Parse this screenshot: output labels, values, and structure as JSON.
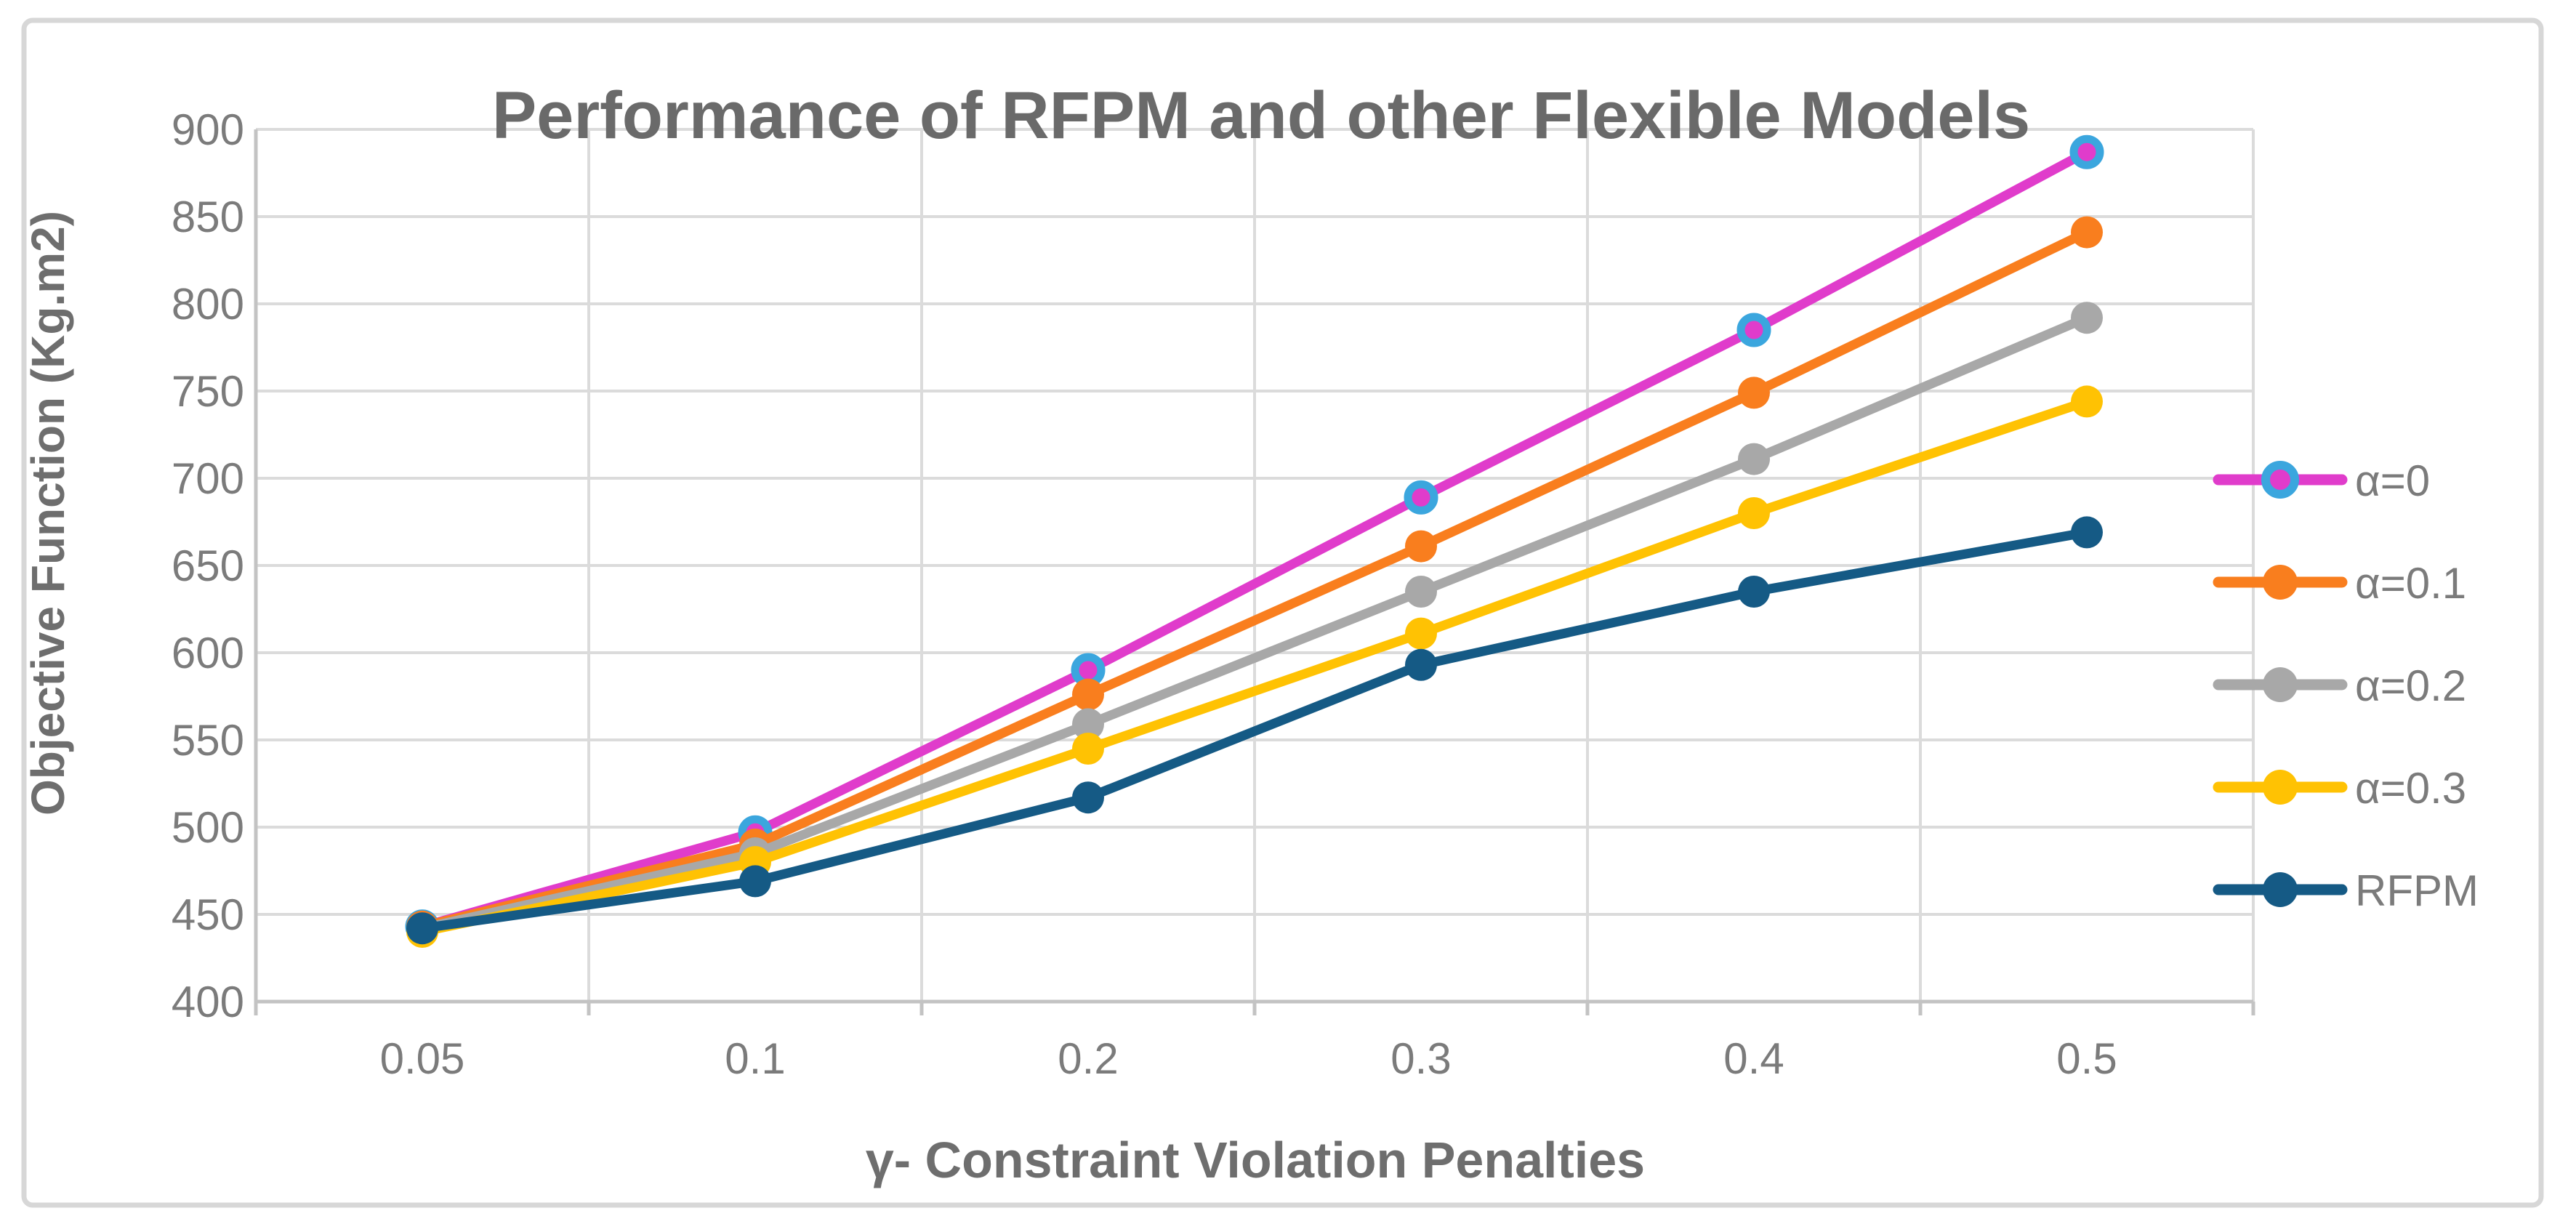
{
  "chart_data": {
    "type": "line",
    "title": "Performance of RFPM and other Flexible Models",
    "xlabel": "γ- Constraint Violation Penalties",
    "ylabel": "Objective Function (Kg.m2)",
    "categories": [
      "0.05",
      "0.1",
      "0.2",
      "0.3",
      "0.4",
      "0.5"
    ],
    "ylim": [
      400,
      900
    ],
    "ytick_step": 50,
    "ytick_labels": [
      "400",
      "450",
      "500",
      "550",
      "600",
      "650",
      "700",
      "750",
      "800",
      "850",
      "900"
    ],
    "grid": true,
    "legend_position": "right",
    "series": [
      {
        "name": "α=0",
        "color": "#E03CCB",
        "marker_outline": "#3BA6DE",
        "values": [
          443,
          497,
          590,
          689,
          785,
          887
        ]
      },
      {
        "name": "α=0.1",
        "color": "#F97E1E",
        "marker_outline": null,
        "values": [
          443,
          490,
          576,
          661,
          749,
          841
        ]
      },
      {
        "name": "α=0.2",
        "color": "#A8A8A8",
        "marker_outline": null,
        "values": [
          442,
          485,
          559,
          635,
          711,
          792
        ]
      },
      {
        "name": "α=0.3",
        "color": "#FFC203",
        "marker_outline": null,
        "values": [
          440,
          480,
          545,
          611,
          680,
          744
        ]
      },
      {
        "name": "RFPM",
        "color": "#155A85",
        "marker_outline": null,
        "values": [
          442,
          469,
          517,
          593,
          635,
          669
        ]
      }
    ]
  },
  "style": {
    "background": "#FFFFFF",
    "title_color": "#6A6A6A",
    "axis_title_color": "#6E6E6E",
    "tick_label_color": "#7B7B7B",
    "legend_label_color": "#7B7B7B",
    "gridline_color": "#DBDBDB",
    "axis_line_color": "#C3C3C3",
    "border_color": "#D7D7D7"
  }
}
